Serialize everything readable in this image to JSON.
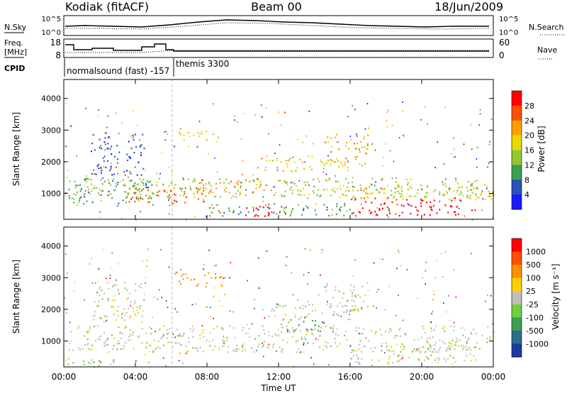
{
  "header": {
    "station": "Kodiak (fitACF)",
    "beam": "Beam 00",
    "date": "18/Jun/2009"
  },
  "side_labels": {
    "nsky": "N.Sky",
    "nsearch": "N.Search",
    "freq_line1": "Freq.",
    "freq_line2": "[MHz]",
    "nave": "Nave",
    "cpid": "CPID"
  },
  "noise_panel": {
    "left_ticks": [
      "10^5",
      "10^0"
    ],
    "right_ticks": [
      "10^5",
      "10^0"
    ]
  },
  "freq_panel": {
    "left_ticks": [
      "18",
      "8"
    ],
    "right_ticks": [
      "60",
      "0"
    ]
  },
  "cpid_labels": {
    "mode1": "normalsound (fast) -157",
    "mode2": "themis 3300"
  },
  "x_axis": {
    "label": "Time UT",
    "ticks": [
      "00:00",
      "04:00",
      "08:00",
      "12:00",
      "16:00",
      "20:00",
      "00:00"
    ]
  },
  "panels": {
    "power_ylabel": "Slant Range [km]",
    "velocity_ylabel": "Slant Range [km]",
    "power_cbar_label": "Power [dB]",
    "velocity_cbar_label": "Velocity [m s⁻¹]"
  },
  "colors": {
    "power_scale": [
      "#1a1aff",
      "#2a52b8",
      "#3aa050",
      "#90c830",
      "#e8d800",
      "#ffa000",
      "#ff5000",
      "#ff0000"
    ],
    "velocity_scale": [
      "#1a3aa0",
      "#2a6e90",
      "#3aa050",
      "#70d040",
      "#c8c8c0",
      "#ffd000",
      "#ff9000",
      "#ff5000",
      "#ff0000"
    ],
    "gray_scatter": "#c0c0b8"
  },
  "chart_data": [
    {
      "type": "heatmap",
      "title": "Power",
      "ylabel": "Slant Range [km]",
      "xlabel": "",
      "y_ticks": [
        "1000",
        "2000",
        "3000",
        "4000"
      ],
      "ylim": [
        180,
        4600
      ],
      "xlim_hours": [
        0,
        24
      ],
      "colorbar": {
        "label": "Power [dB]",
        "ticks": [
          "28",
          "24",
          "20",
          "16",
          "12",
          "8",
          "4"
        ]
      },
      "regions": [
        {
          "t0": 0.2,
          "t1": 5.0,
          "r0": 650,
          "r1": 1500,
          "level": 2
        },
        {
          "t0": 1.5,
          "t1": 4.5,
          "r0": 1600,
          "r1": 2900,
          "level": 1
        },
        {
          "t0": 0.5,
          "t1": 24.0,
          "r0": 900,
          "r1": 1500,
          "level": 3
        },
        {
          "t0": 3.5,
          "t1": 8.0,
          "r0": 700,
          "r1": 1200,
          "level": 6
        },
        {
          "t0": 6.0,
          "t1": 9.0,
          "r0": 2700,
          "r1": 3000,
          "level": 4
        },
        {
          "t0": 7.0,
          "t1": 11.0,
          "r0": 1000,
          "r1": 1500,
          "level": 5
        },
        {
          "t0": 10.0,
          "t1": 12.5,
          "r0": 300,
          "r1": 650,
          "level": 7
        },
        {
          "t0": 11.0,
          "t1": 16.0,
          "r0": 1700,
          "r1": 2200,
          "level": 4
        },
        {
          "t0": 14.5,
          "t1": 17.0,
          "r0": 1900,
          "r1": 2900,
          "level": 5
        },
        {
          "t0": 16.0,
          "t1": 23.0,
          "r0": 300,
          "r1": 900,
          "level": 7
        },
        {
          "t0": 15.0,
          "t1": 24.0,
          "r0": 800,
          "r1": 1300,
          "level": 4
        },
        {
          "t0": 8.0,
          "t1": 16.0,
          "r0": 300,
          "r1": 700,
          "level": 2
        }
      ]
    },
    {
      "type": "heatmap",
      "title": "Velocity",
      "ylabel": "Slant Range [km]",
      "xlabel": "Time UT",
      "y_ticks": [
        "1000",
        "2000",
        "3000",
        "4000"
      ],
      "ylim": [
        180,
        4600
      ],
      "xlim_hours": [
        0,
        24
      ],
      "colorbar": {
        "label": "Velocity [m s⁻¹]",
        "ticks": [
          "1000",
          "500",
          "100",
          "25",
          "-25",
          "-100",
          "-500",
          "-1000"
        ]
      },
      "regions": [
        {
          "t0": 0.2,
          "t1": 24.0,
          "r0": 650,
          "r1": 1500,
          "level": 4
        },
        {
          "t0": 1.5,
          "t1": 4.5,
          "r0": 1600,
          "r1": 2900,
          "level": 4
        },
        {
          "t0": 6.0,
          "t1": 9.0,
          "r0": 2700,
          "r1": 3200,
          "level": 6
        },
        {
          "t0": 12.0,
          "t1": 15.0,
          "r0": 1300,
          "r1": 1700,
          "level": 2
        },
        {
          "t0": 0.2,
          "t1": 3.0,
          "r0": 200,
          "r1": 450,
          "level": 3
        },
        {
          "t0": 14.5,
          "t1": 17.0,
          "r0": 1900,
          "r1": 2900,
          "level": 4
        },
        {
          "t0": 16.0,
          "t1": 23.0,
          "r0": 300,
          "r1": 900,
          "level": 4
        },
        {
          "t0": 11.0,
          "t1": 16.0,
          "r0": 1700,
          "r1": 2200,
          "level": 4
        }
      ]
    }
  ]
}
